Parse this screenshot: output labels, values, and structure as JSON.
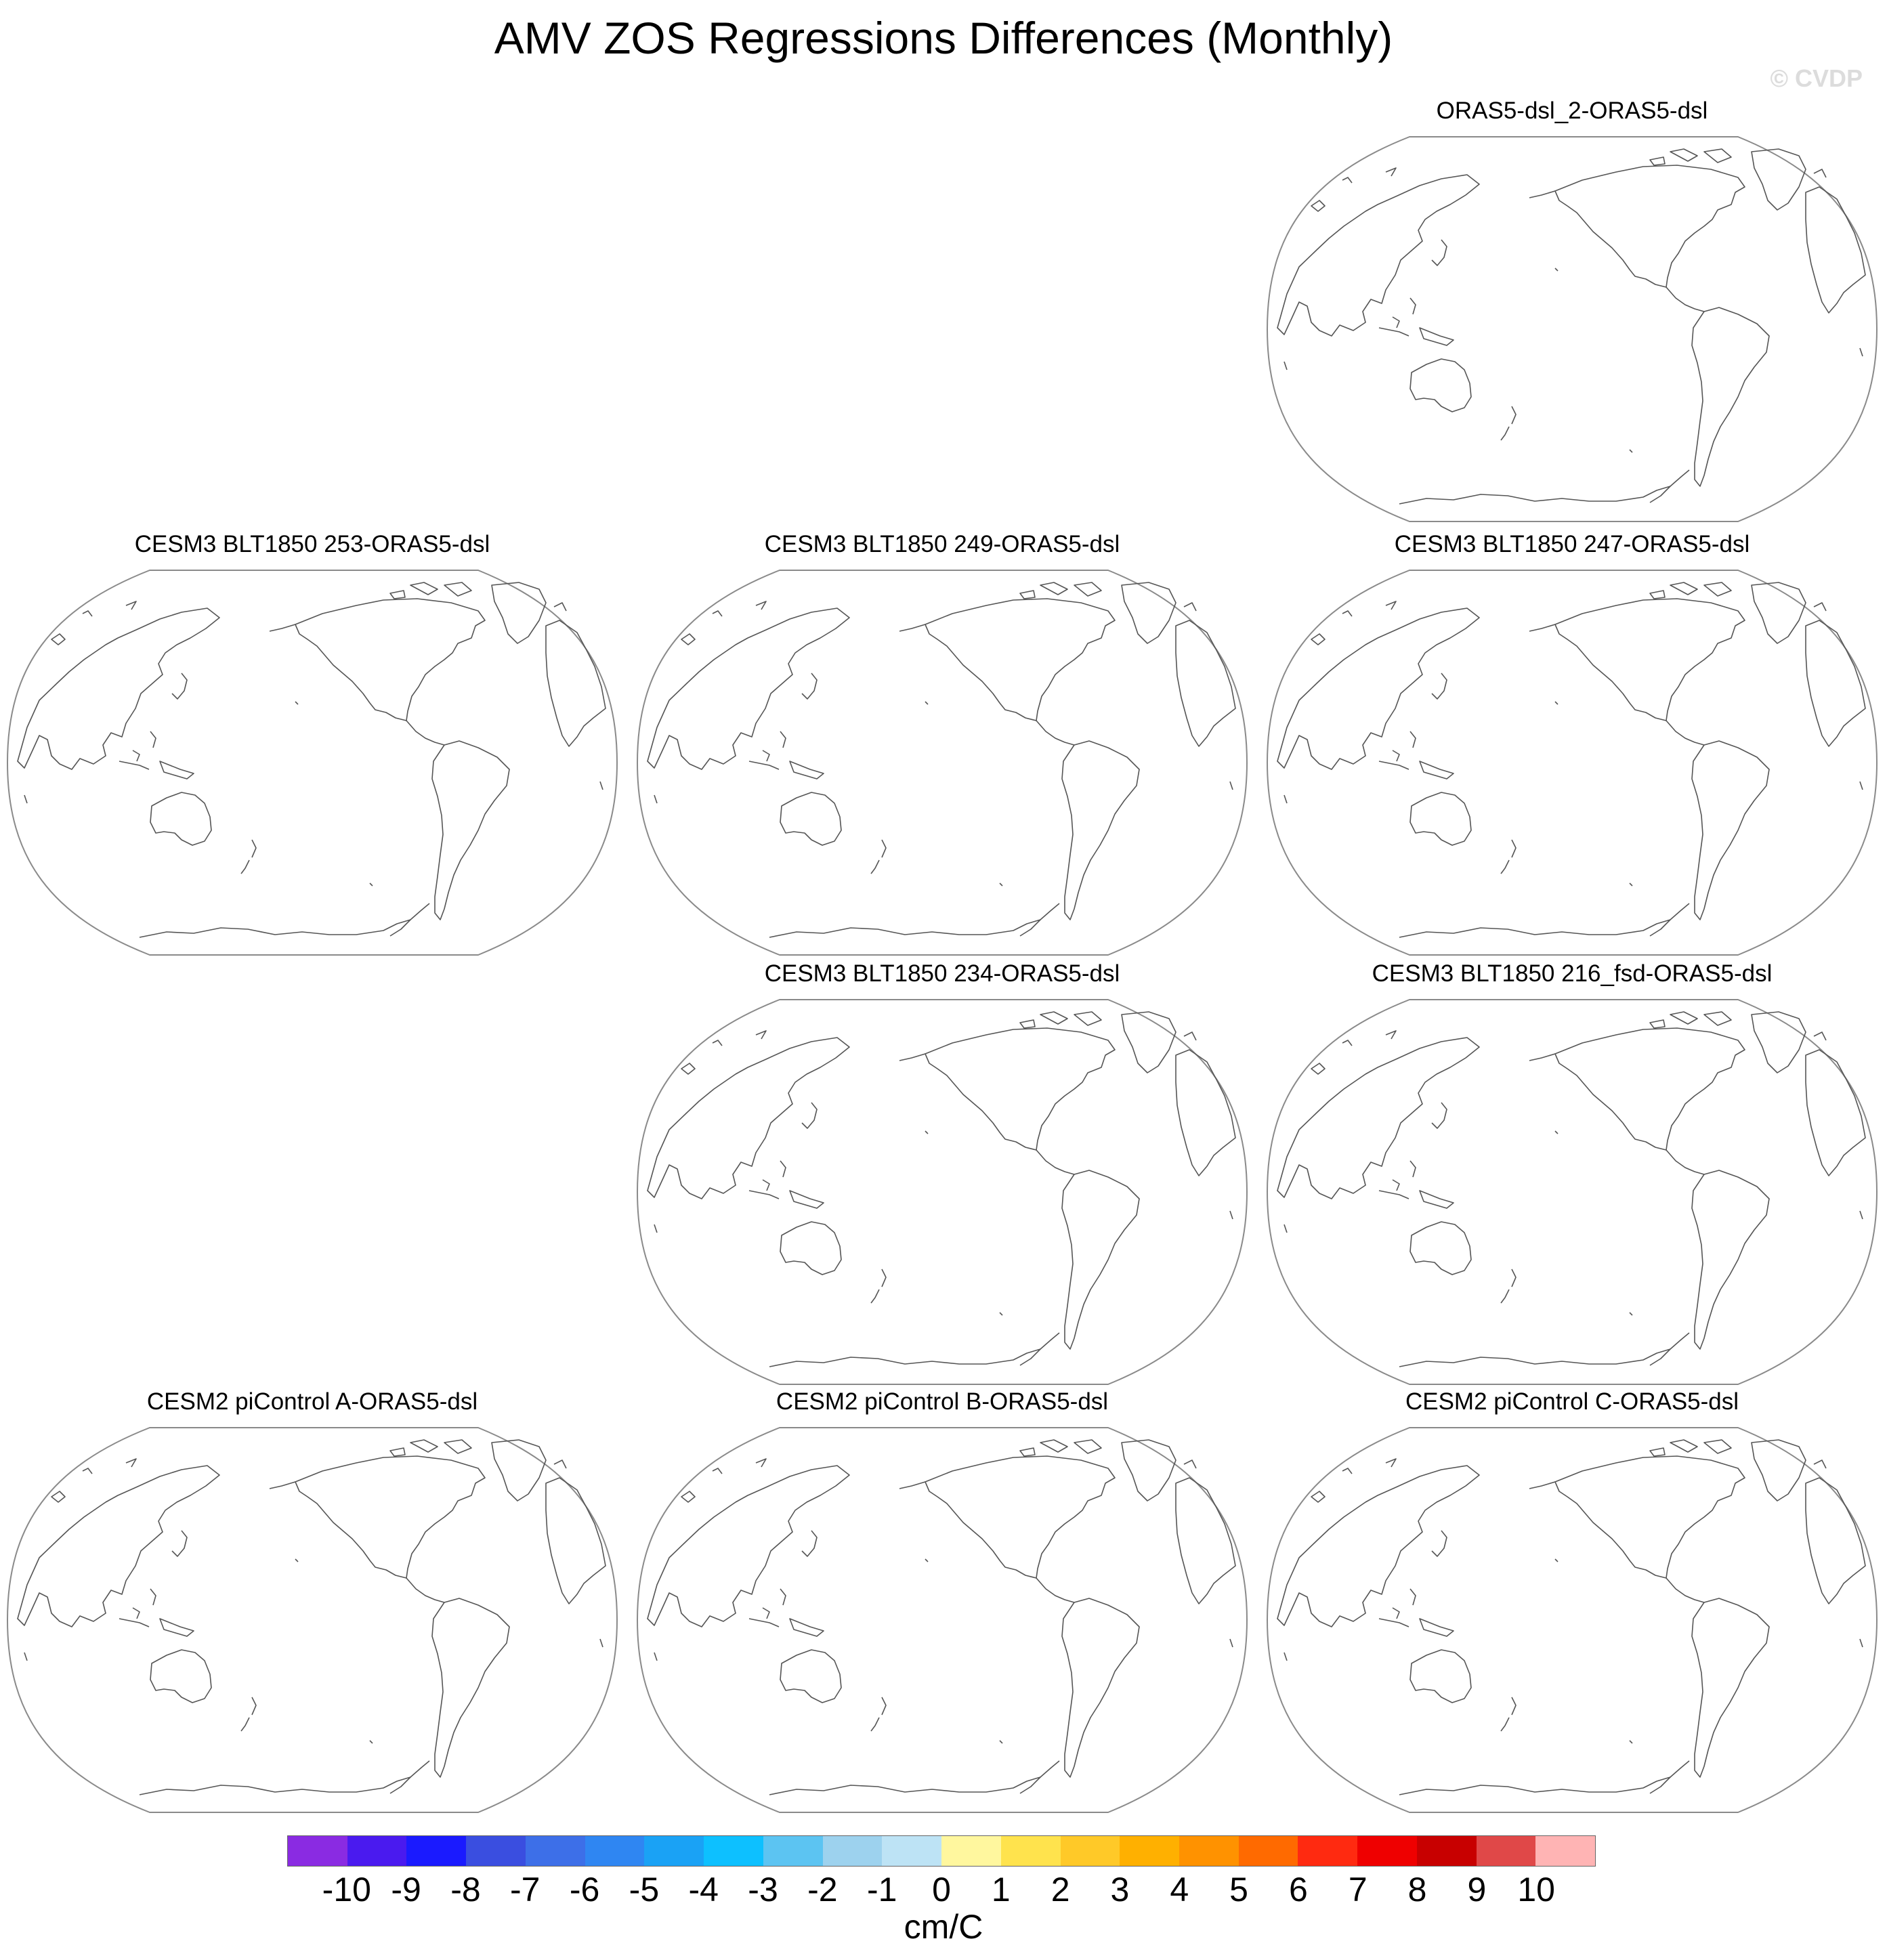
{
  "title": "AMV ZOS Regressions Differences (Monthly)",
  "watermark": "© CVDP",
  "panels": [
    {
      "title": "ORAS5-dsl_2-ORAS5-dsl"
    },
    {
      "title": "CESM3 BLT1850 253-ORAS5-dsl"
    },
    {
      "title": "CESM3 BLT1850 249-ORAS5-dsl"
    },
    {
      "title": "CESM3 BLT1850 247-ORAS5-dsl"
    },
    {
      "title": "CESM3 BLT1850 234-ORAS5-dsl"
    },
    {
      "title": "CESM3 BLT1850 216_fsd-ORAS5-dsl"
    },
    {
      "title": "CESM2 piControl A-ORAS5-dsl"
    },
    {
      "title": "CESM2 piControl B-ORAS5-dsl"
    },
    {
      "title": "CESM2 piControl C-ORAS5-dsl"
    }
  ],
  "colorbar": {
    "units": "cm/C",
    "labels": [
      "-10",
      "-9",
      "-8",
      "-7",
      "-6",
      "-5",
      "-4",
      "-3",
      "-2",
      "-1",
      "0",
      "1",
      "2",
      "3",
      "4",
      "5",
      "6",
      "7",
      "8",
      "9",
      "10"
    ],
    "colors": [
      "#8a2be2",
      "#4a1aef",
      "#1a1aff",
      "#3a4ee0",
      "#3d6fe8",
      "#2f86f2",
      "#1aa2f5",
      "#0dc0ff",
      "#5cc4f2",
      "#9dd2ee",
      "#bde3f5",
      "#fff79e",
      "#ffe34d",
      "#ffc928",
      "#ffb000",
      "#ff9200",
      "#ff6a00",
      "#ff2a10",
      "#ef0000",
      "#c80000",
      "#e04848",
      "#ffb4b4"
    ]
  }
}
